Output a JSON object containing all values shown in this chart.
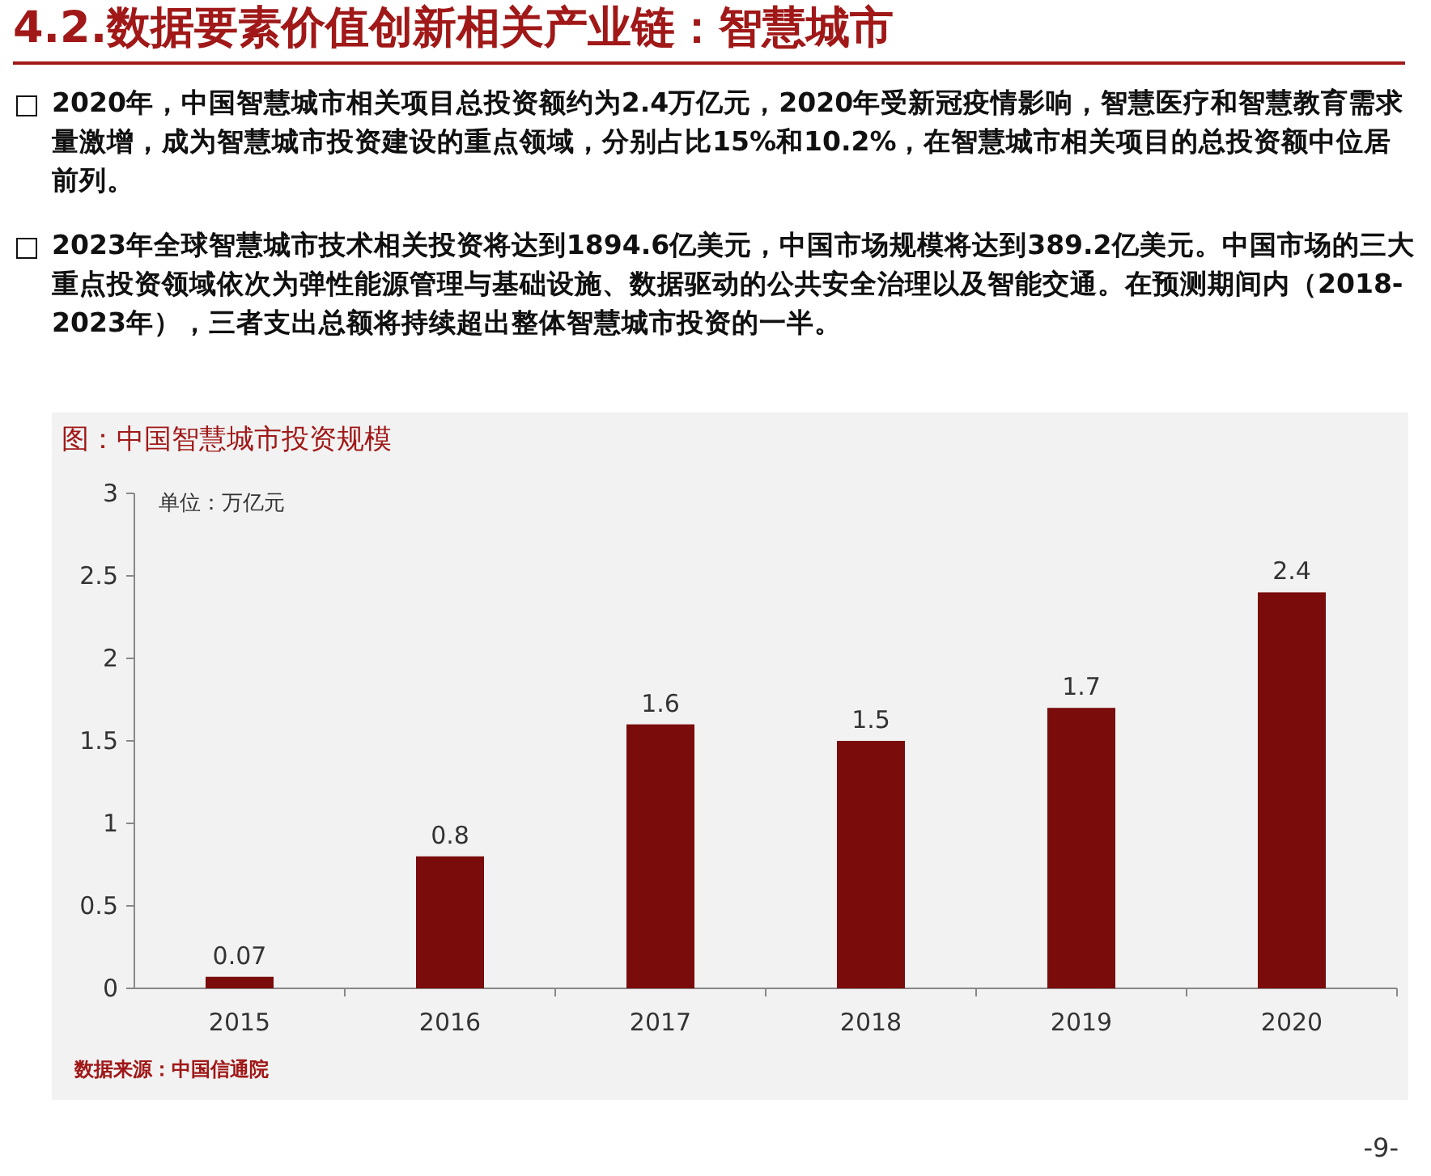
{
  "chart_data": {
    "type": "bar",
    "title": "4.2.数据要素价值创新相关产业链：智慧城市",
    "subtitle": "图：中国智慧城市投资规模",
    "ylabel": "单位：万亿元",
    "annotations": [
      "2020年，中国智慧城市相关项目总投资额约为2.4万亿元，2020年受新冠疫情影响，智慧医疗和智慧教育需求量激增，成为智慧城市投资建设的重点领域，分别占比15%和10.2%，在智慧城市相关项目的总投资额中位居前列。",
      "2023年全球智慧城市技术相关投资将达到1894.6亿美元，中国市场规模将达到389.2亿美元。中国市场的三大重点投资领域依次为弹性能源管理与基础设施、数据驱动的公共安全治理以及智能交通。在预测期间内（2018-2023年），三者支出总额将持续超出整体智慧城市投资的一半。",
      "数据来源：中国信通院",
      "-9-"
    ],
    "categories": [
      "2015",
      "2016",
      "2017",
      "2018",
      "2019",
      "2020"
    ],
    "values": [
      0.07,
      0.8,
      1.6,
      1.5,
      1.7,
      2.4
    ],
    "color": "#7a0c0c",
    "ylim": [
      0,
      3
    ],
    "yticks": [
      0,
      0.5,
      1,
      1.5,
      2,
      2.5,
      3
    ],
    "data_labels": true,
    "grid": false
  }
}
